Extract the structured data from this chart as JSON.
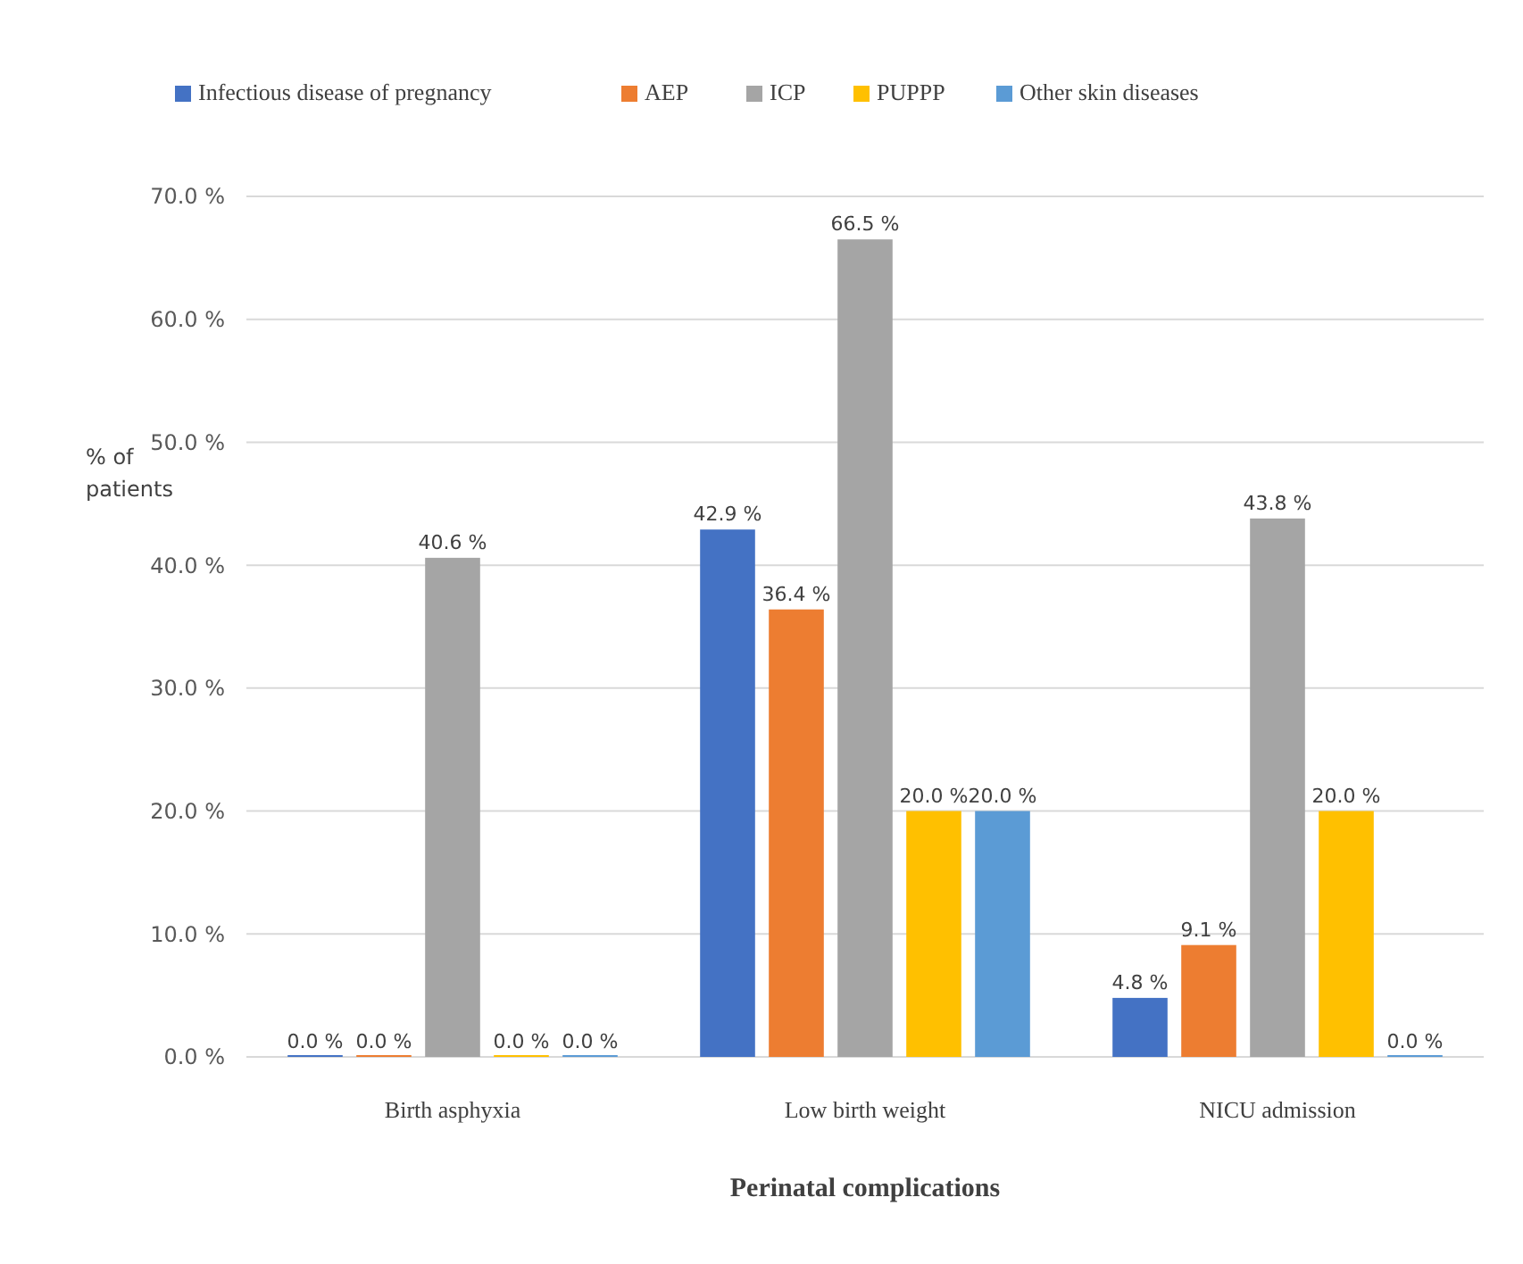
{
  "chart_data": {
    "type": "bar",
    "xlabel": "Perinatal complications",
    "ylabel": "% of patients",
    "categories": [
      "Birth asphyxia",
      "Low birth weight",
      "NICU admission"
    ],
    "series": [
      {
        "name": "Infectious disease of pregnancy",
        "color": "#4472c4",
        "values": [
          0.0,
          42.9,
          4.8
        ],
        "value_labels": [
          "0.0 %",
          "42.9 %",
          "4.8 %"
        ]
      },
      {
        "name": "AEP",
        "color": "#ed7d31",
        "values": [
          0.0,
          36.4,
          9.1
        ],
        "value_labels": [
          "0.0 %",
          "36.4 %",
          "9.1 %"
        ]
      },
      {
        "name": "ICP",
        "color": "#a5a5a5",
        "values": [
          40.6,
          66.5,
          43.8
        ],
        "value_labels": [
          "40.6 %",
          "66.5 %",
          "43.8 %"
        ]
      },
      {
        "name": "PUPPP",
        "color": "#ffc000",
        "values": [
          0.0,
          20.0,
          20.0
        ],
        "value_labels": [
          "0.0 %",
          "20.0 %",
          "20.0 %"
        ]
      },
      {
        "name": "Other skin diseases",
        "color": "#5b9bd5",
        "values": [
          0.0,
          20.0,
          0.0
        ],
        "value_labels": [
          "0.0 %",
          "20.0 %",
          "0.0 %"
        ]
      }
    ],
    "ylim": [
      0,
      70
    ],
    "yticks": [
      {
        "value": 0,
        "label": "0.0 %"
      },
      {
        "value": 10,
        "label": "10.0 %"
      },
      {
        "value": 20,
        "label": "20.0 %"
      },
      {
        "value": 30,
        "label": "30.0 %"
      },
      {
        "value": 40,
        "label": "40.0 %"
      },
      {
        "value": 50,
        "label": "50.0 %"
      },
      {
        "value": 60,
        "label": "60.0 %"
      },
      {
        "value": 70,
        "label": "70.0 %"
      }
    ],
    "grid": "y",
    "legend": "top"
  }
}
